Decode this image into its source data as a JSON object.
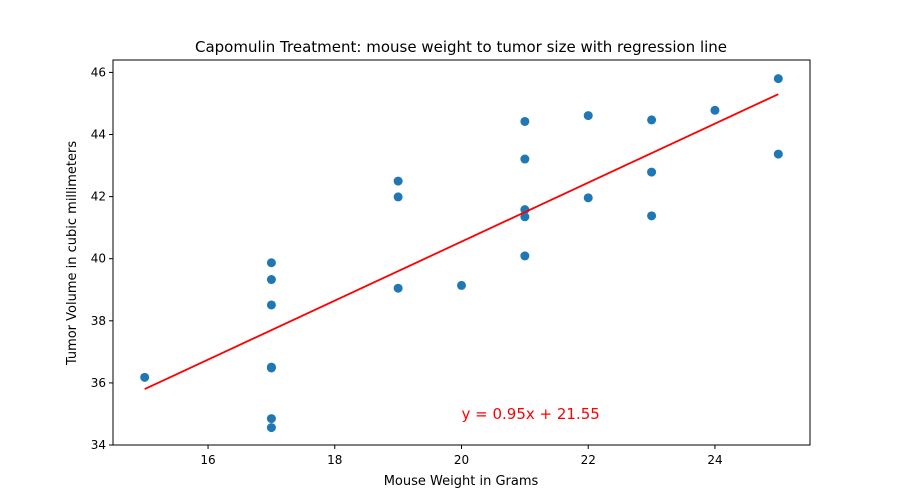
{
  "chart_data": {
    "type": "scatter",
    "title": "Capomulin Treatment: mouse weight to tumor size with regression line",
    "xlabel": "Mouse Weight in Grams",
    "ylabel": "Tumor Volume in cubic millimeters",
    "xlim": [
      14.5,
      25.5
    ],
    "ylim": [
      34,
      46.4
    ],
    "xticks": [
      16,
      18,
      20,
      22,
      24
    ],
    "yticks": [
      34,
      36,
      38,
      40,
      42,
      44,
      46
    ],
    "grid": false,
    "point_color": "#1f77b4",
    "line_color": "#ff0000",
    "points": [
      {
        "x": 15,
        "y": 36.18
      },
      {
        "x": 17,
        "y": 39.87
      },
      {
        "x": 17,
        "y": 39.33
      },
      {
        "x": 17,
        "y": 38.51
      },
      {
        "x": 17,
        "y": 36.51
      },
      {
        "x": 17,
        "y": 36.48
      },
      {
        "x": 17,
        "y": 34.85
      },
      {
        "x": 17,
        "y": 34.56
      },
      {
        "x": 19,
        "y": 42.5
      },
      {
        "x": 19,
        "y": 41.99
      },
      {
        "x": 19,
        "y": 39.05
      },
      {
        "x": 20,
        "y": 39.14
      },
      {
        "x": 21,
        "y": 44.42
      },
      {
        "x": 21,
        "y": 43.21
      },
      {
        "x": 21,
        "y": 41.58
      },
      {
        "x": 21,
        "y": 41.35
      },
      {
        "x": 21,
        "y": 40.09
      },
      {
        "x": 22,
        "y": 44.61
      },
      {
        "x": 22,
        "y": 41.96
      },
      {
        "x": 23,
        "y": 44.47
      },
      {
        "x": 23,
        "y": 42.79
      },
      {
        "x": 23,
        "y": 41.38
      },
      {
        "x": 24,
        "y": 44.78
      },
      {
        "x": 25,
        "y": 45.8
      },
      {
        "x": 25,
        "y": 43.37
      }
    ],
    "regression": {
      "slope": 0.95,
      "intercept": 21.55,
      "x_range": [
        15,
        25
      ],
      "equation_label": "y = 0.95x + 21.55",
      "label_position": {
        "x": 20,
        "y": 35
      }
    }
  }
}
